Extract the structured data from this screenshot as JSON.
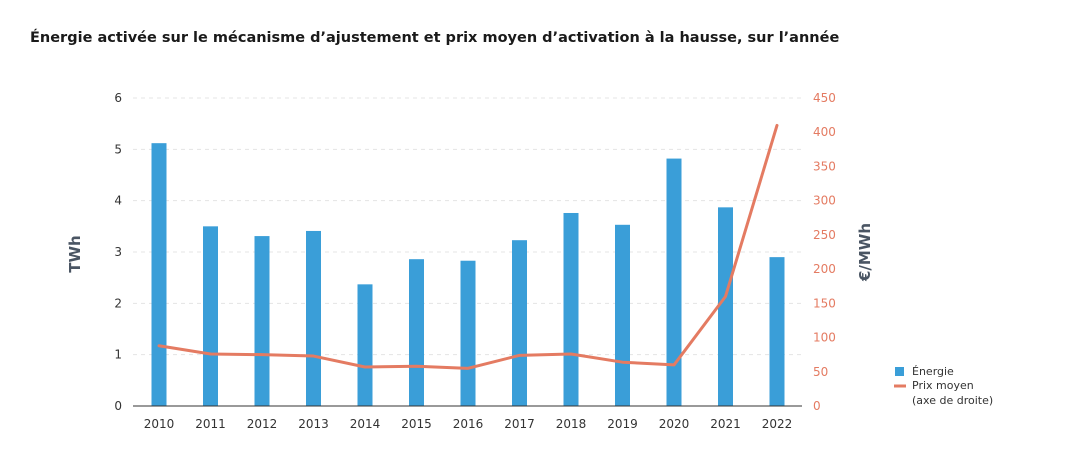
{
  "chart_data": {
    "type": "bar+line",
    "title": "Énergie activée sur le mécanisme d’ajustement et prix moyen d’activation à la hausse, sur l’année",
    "categories": [
      "2010",
      "2011",
      "2012",
      "2013",
      "2014",
      "2015",
      "2016",
      "2017",
      "2018",
      "2019",
      "2020",
      "2021",
      "2022"
    ],
    "series": [
      {
        "name": "Énergie",
        "type": "bar",
        "axis": "left",
        "color": "#3a9ed8",
        "values": [
          5.12,
          3.5,
          3.31,
          3.41,
          2.37,
          2.86,
          2.83,
          3.23,
          3.76,
          3.53,
          4.82,
          3.87,
          2.9
        ]
      },
      {
        "name": "Prix moyen",
        "name_line2": "(axe de droite)",
        "type": "line",
        "axis": "right",
        "color": "#e47b62",
        "values": [
          88,
          76,
          75,
          73,
          57,
          58,
          55,
          74,
          76,
          64,
          60,
          160,
          410
        ]
      }
    ],
    "left_axis": {
      "label": "TWh",
      "ylim": [
        0,
        6
      ],
      "ticks": [
        "0",
        "1",
        "2",
        "3",
        "4",
        "5",
        "6"
      ]
    },
    "right_axis": {
      "label": "€/MWh",
      "ylim": [
        0,
        450
      ],
      "ticks": [
        "0",
        "50",
        "100",
        "150",
        "200",
        "250",
        "300",
        "350",
        "400",
        "450"
      ]
    },
    "grid": true,
    "legend_position": "bottom-right"
  }
}
